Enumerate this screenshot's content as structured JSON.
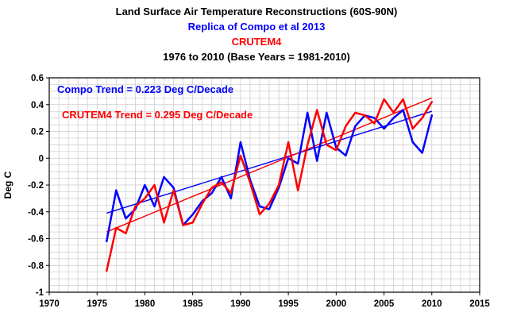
{
  "titles": {
    "line1": "Land Surface Air Temperature Reconstructions (60S-90N)",
    "line2": "Replica of Compo et al 2013",
    "line3": "CRUTEM4",
    "line4": "1976 to 2010 (Base Years = 1981-2010)"
  },
  "annotations": {
    "compo_trend": "Compo Trend = 0.223 Deg C/Decade",
    "crutem4_trend": "CRUTEM4 Trend = 0.295 Deg C/Decade"
  },
  "colors": {
    "compo": "#0000ff",
    "crutem4": "#ff0000",
    "grid": "#c9c9c9",
    "axis": "#000000",
    "background": "#ffffff"
  },
  "chart_data": {
    "type": "line",
    "title": "Land Surface Air Temperature Reconstructions (60S-90N)",
    "subtitles": [
      "Replica of Compo et al 2013",
      "CRUTEM4",
      "1976 to 2010 (Base Years = 1981-2010)"
    ],
    "xlabel": "",
    "ylabel": "Deg C",
    "xlim": [
      1970,
      2015
    ],
    "ylim": [
      -1,
      0.6
    ],
    "xticks": [
      1970,
      1975,
      1980,
      1985,
      1990,
      1995,
      2000,
      2005,
      2010,
      2015
    ],
    "xtick_labels": [
      "1970",
      "1975",
      "1980",
      "1985",
      "1990",
      "1995",
      "2000",
      "2005",
      "2010",
      "2015"
    ],
    "yticks": [
      -1,
      -0.8,
      -0.6,
      -0.4,
      -0.2,
      0,
      0.2,
      0.4,
      0.6
    ],
    "ytick_labels": [
      "-1",
      "-0.8",
      "-0.6",
      "-0.4",
      "-0.2",
      "0",
      "0.2",
      "0.4",
      "0.6"
    ],
    "grid": true,
    "legend_position": "annotations-top-left",
    "x": [
      1976,
      1977,
      1978,
      1979,
      1980,
      1981,
      1982,
      1983,
      1984,
      1985,
      1986,
      1987,
      1988,
      1989,
      1990,
      1991,
      1992,
      1993,
      1994,
      1995,
      1996,
      1997,
      1998,
      1999,
      2000,
      2001,
      2002,
      2003,
      2004,
      2005,
      2006,
      2007,
      2008,
      2009,
      2010
    ],
    "series": [
      {
        "id": "compo",
        "name": "Replica of Compo et al 2013",
        "color": "#0000ff",
        "values": [
          -0.62,
          -0.24,
          -0.45,
          -0.38,
          -0.2,
          -0.36,
          -0.14,
          -0.22,
          -0.5,
          -0.42,
          -0.32,
          -0.26,
          -0.14,
          -0.3,
          0.12,
          -0.16,
          -0.36,
          -0.38,
          -0.22,
          0.0,
          -0.04,
          0.34,
          -0.02,
          0.34,
          0.08,
          0.02,
          0.24,
          0.32,
          0.3,
          0.22,
          0.3,
          0.36,
          0.12,
          0.04,
          0.32
        ]
      },
      {
        "id": "crutem4",
        "name": "CRUTEM4",
        "color": "#ff0000",
        "values": [
          -0.84,
          -0.52,
          -0.56,
          -0.36,
          -0.3,
          -0.2,
          -0.48,
          -0.24,
          -0.5,
          -0.48,
          -0.34,
          -0.22,
          -0.18,
          -0.26,
          0.02,
          -0.18,
          -0.42,
          -0.34,
          -0.2,
          0.12,
          -0.24,
          0.1,
          0.36,
          0.1,
          0.06,
          0.24,
          0.34,
          0.32,
          0.26,
          0.44,
          0.34,
          0.44,
          0.22,
          0.3,
          0.42
        ]
      }
    ],
    "trends": [
      {
        "id": "compo",
        "label": "Compo Trend = 0.223 Deg C/Decade",
        "rate_deg_c_per_decade": 0.223,
        "color": "#0000ff",
        "x_start": 1976,
        "x_end": 2010,
        "y_start": -0.41,
        "y_end": 0.35
      },
      {
        "id": "crutem4",
        "label": "CRUTEM4 Trend = 0.295 Deg C/Decade",
        "rate_deg_c_per_decade": 0.295,
        "color": "#ff0000",
        "x_start": 1976,
        "x_end": 2010,
        "y_start": -0.55,
        "y_end": 0.45
      }
    ]
  }
}
